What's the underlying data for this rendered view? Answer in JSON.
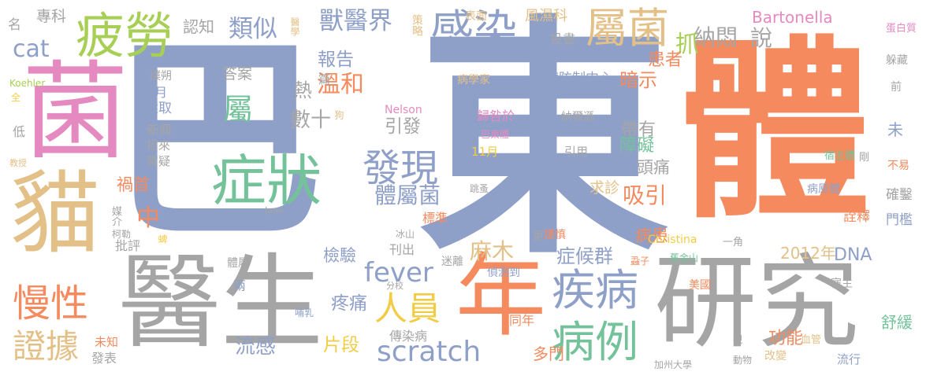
{
  "colors": {
    "blue": "#8fa0c8",
    "orange": "#f48a5e",
    "gray": "#a5a5a5",
    "tan": "#e3c087",
    "green": "#73c29a",
    "pink": "#e58ac0",
    "yellow": "#f2cc45",
    "lime": "#a7cf55"
  },
  "words": [
    {
      "text": "巴",
      "color": "blue"
    },
    {
      "text": "東",
      "color": "blue"
    },
    {
      "text": "體",
      "color": "orange"
    },
    {
      "text": "研究",
      "color": "gray"
    },
    {
      "text": "醫生",
      "color": "gray"
    },
    {
      "text": "菌",
      "color": "pink"
    },
    {
      "text": "貓",
      "color": "tan"
    },
    {
      "text": "年",
      "color": "orange"
    },
    {
      "text": "症狀",
      "color": "green"
    },
    {
      "text": "疲勞",
      "color": "lime"
    },
    {
      "text": "屬菌",
      "color": "tan"
    },
    {
      "text": "感染",
      "color": "blue"
    },
    {
      "text": "疾病",
      "color": "blue"
    },
    {
      "text": "病例",
      "color": "green"
    },
    {
      "text": "慢性",
      "color": "orange"
    },
    {
      "text": "證據",
      "color": "tan"
    },
    {
      "text": "發現",
      "color": "blue"
    },
    {
      "text": "人員",
      "color": "yellow"
    },
    {
      "text": "scratch",
      "color": "blue"
    },
    {
      "text": "fever",
      "color": "blue"
    },
    {
      "text": "獸醫界",
      "color": "blue"
    },
    {
      "text": "類似",
      "color": "blue"
    },
    {
      "text": "認知",
      "color": "gray"
    },
    {
      "text": "專科",
      "color": "gray"
    },
    {
      "text": "cat",
      "color": "blue"
    },
    {
      "text": "名",
      "color": "gray"
    },
    {
      "text": "Bartonella",
      "color": "pink"
    },
    {
      "text": "納悶",
      "color": "gray"
    },
    {
      "text": "說",
      "color": "gray"
    },
    {
      "text": "風濕科",
      "color": "tan"
    },
    {
      "text": "表面",
      "color": "tan"
    },
    {
      "text": "策略",
      "color": "tan"
    },
    {
      "text": "醫學",
      "color": "tan"
    },
    {
      "text": "投書",
      "color": "gray"
    },
    {
      "text": "報告",
      "color": "blue"
    },
    {
      "text": "抓",
      "color": "lime"
    },
    {
      "text": "患者",
      "color": "orange"
    },
    {
      "text": "溫和",
      "color": "orange"
    },
    {
      "text": "答案",
      "color": "gray"
    },
    {
      "text": "篇",
      "color": "gray"
    },
    {
      "text": "熱",
      "color": "gray"
    },
    {
      "text": "數十",
      "color": "gray"
    },
    {
      "text": "狗",
      "color": "tan"
    },
    {
      "text": "屬",
      "color": "green"
    },
    {
      "text": "暗示",
      "color": "orange"
    },
    {
      "text": "帶有",
      "color": "gray"
    },
    {
      "text": "病學家",
      "color": "tan"
    },
    {
      "text": "疾病防制中心",
      "color": "blue"
    },
    {
      "text": "Nelson",
      "color": "pink"
    },
    {
      "text": "引發",
      "color": "gray"
    },
    {
      "text": "歸咎於",
      "color": "pink"
    },
    {
      "text": "納爾遜",
      "color": "gray"
    },
    {
      "text": "巴東體",
      "color": "pink"
    },
    {
      "text": "11月",
      "color": "yellow"
    },
    {
      "text": "引用",
      "color": "gray"
    },
    {
      "text": "障礙",
      "color": "green"
    },
    {
      "text": "頭痛",
      "color": "gray"
    },
    {
      "text": "求診",
      "color": "tan"
    },
    {
      "text": "吸引",
      "color": "orange"
    },
    {
      "text": "體屬菌",
      "color": "blue"
    },
    {
      "text": "中",
      "color": "orange"
    },
    {
      "text": "禍首",
      "color": "orange"
    },
    {
      "text": "標準",
      "color": "orange"
    },
    {
      "text": "麻木",
      "color": "tan"
    },
    {
      "text": "症候群",
      "color": "blue"
    },
    {
      "text": "檢驗",
      "color": "blue"
    },
    {
      "text": "刊出",
      "color": "gray"
    },
    {
      "text": "更",
      "color": "gray"
    },
    {
      "text": "謹慎",
      "color": "orange"
    },
    {
      "text": "病患",
      "color": "orange"
    },
    {
      "text": "2012年",
      "color": "tan"
    },
    {
      "text": "DNA",
      "color": "blue"
    },
    {
      "text": "疼痛",
      "color": "blue"
    },
    {
      "text": "片段",
      "color": "yellow"
    },
    {
      "text": "傳染病",
      "color": "gray"
    },
    {
      "text": "多門",
      "color": "orange"
    },
    {
      "text": "同年",
      "color": "orange"
    },
    {
      "text": "流感",
      "color": "blue"
    },
    {
      "text": "功能",
      "color": "orange"
    },
    {
      "text": "舒緩",
      "color": "green"
    },
    {
      "text": "Koehler",
      "color": "lime"
    },
    {
      "text": "撲朔",
      "color": "gray"
    },
    {
      "text": "5月",
      "color": "blue"
    },
    {
      "text": "選取",
      "color": "blue"
    },
    {
      "text": "新興",
      "color": "gray"
    },
    {
      "text": "招來",
      "color": "gray"
    },
    {
      "text": "質疑",
      "color": "gray"
    },
    {
      "text": "全",
      "color": "yellow"
    },
    {
      "text": "低",
      "color": "gray"
    },
    {
      "text": "教授",
      "color": "tan"
    },
    {
      "text": "媒介",
      "color": "gray"
    },
    {
      "text": "柯勒",
      "color": "gray"
    },
    {
      "text": "蜱",
      "color": "yellow"
    },
    {
      "text": "批評",
      "color": "gray"
    },
    {
      "text": "跳蚤",
      "color": "gray"
    },
    {
      "text": "Jane",
      "color": "gray"
    },
    {
      "text": "冰山",
      "color": "gray"
    },
    {
      "text": "迷離",
      "color": "gray"
    },
    {
      "text": "偵測到",
      "color": "blue"
    },
    {
      "text": "分校",
      "color": "gray"
    },
    {
      "text": "體屬",
      "color": "gray"
    },
    {
      "text": "兩",
      "color": "blue"
    },
    {
      "text": "哺乳",
      "color": "blue"
    },
    {
      "text": "未知",
      "color": "orange"
    },
    {
      "text": "發表",
      "color": "gray"
    },
    {
      "text": "未",
      "color": "blue"
    },
    {
      "text": "蛋白質",
      "color": "pink"
    },
    {
      "text": "躲藏",
      "color": "gray"
    },
    {
      "text": "前",
      "color": "gray"
    },
    {
      "text": "不易",
      "color": "orange"
    },
    {
      "text": "剛",
      "color": "gray"
    },
    {
      "text": "宿主體",
      "color": "green"
    },
    {
      "text": "病原體",
      "color": "blue"
    },
    {
      "text": "確鑿",
      "color": "gray"
    },
    {
      "text": "Christina",
      "color": "yellow"
    },
    {
      "text": "一角",
      "color": "gray"
    },
    {
      "text": "詮釋",
      "color": "orange"
    },
    {
      "text": "門檻",
      "color": "blue"
    },
    {
      "text": "蝨子",
      "color": "orange"
    },
    {
      "text": "舊金山",
      "color": "green"
    },
    {
      "text": "宿主",
      "color": "gray"
    },
    {
      "text": "美國",
      "color": "orange"
    },
    {
      "text": "血管",
      "color": "tan"
    },
    {
      "text": "視",
      "color": "gray"
    },
    {
      "text": "動物",
      "color": "gray"
    },
    {
      "text": "改變",
      "color": "tan"
    },
    {
      "text": "加州大學",
      "color": "gray"
    },
    {
      "text": "流行",
      "color": "blue"
    }
  ]
}
